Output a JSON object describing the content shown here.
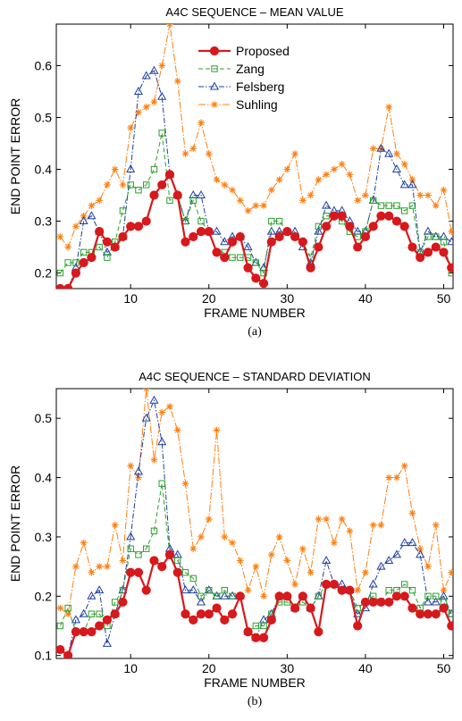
{
  "chart_data": [
    {
      "type": "line",
      "title": "A4C SEQUENCE – MEAN VALUE",
      "xlabel": "FRAME NUMBER",
      "ylabel": "END POINT ERROR",
      "caption": "(a)",
      "xlim": [
        0.5,
        51.2
      ],
      "ylim": [
        0.17,
        0.68
      ],
      "xticks": [
        10,
        20,
        30,
        40,
        50
      ],
      "yticks": [
        0.2,
        0.3,
        0.4,
        0.5,
        0.6
      ],
      "legend_position": "top-center",
      "x": [
        1,
        2,
        3,
        4,
        5,
        6,
        7,
        8,
        9,
        10,
        11,
        12,
        13,
        14,
        15,
        16,
        17,
        18,
        19,
        20,
        21,
        22,
        23,
        24,
        25,
        26,
        27,
        28,
        29,
        30,
        31,
        32,
        33,
        34,
        35,
        36,
        37,
        38,
        39,
        40,
        41,
        42,
        43,
        44,
        45,
        46,
        47,
        48,
        49,
        50,
        51
      ],
      "series": [
        {
          "name": "Proposed",
          "color": "#d7191c",
          "dash": "",
          "marker": "circle",
          "values": [
            0.17,
            0.17,
            0.2,
            0.22,
            0.23,
            0.28,
            0.26,
            0.25,
            0.27,
            0.29,
            0.29,
            0.3,
            0.35,
            0.37,
            0.39,
            0.35,
            0.26,
            0.27,
            0.28,
            0.28,
            0.24,
            0.23,
            0.26,
            0.27,
            0.21,
            0.19,
            0.18,
            0.26,
            0.27,
            0.28,
            0.27,
            0.26,
            0.21,
            0.25,
            0.29,
            0.31,
            0.31,
            0.29,
            0.25,
            0.27,
            0.29,
            0.31,
            0.31,
            0.3,
            0.29,
            0.25,
            0.23,
            0.24,
            0.25,
            0.24,
            0.21
          ]
        },
        {
          "name": "Zang",
          "color": "#2ca02c",
          "dash": "5,3",
          "marker": "square",
          "values": [
            0.2,
            0.22,
            0.22,
            0.24,
            0.24,
            0.25,
            0.23,
            0.26,
            0.32,
            0.37,
            0.36,
            0.37,
            0.4,
            0.47,
            0.34,
            0.35,
            0.3,
            0.34,
            0.3,
            0.28,
            0.24,
            0.24,
            0.23,
            0.23,
            0.23,
            0.22,
            0.2,
            0.3,
            0.3,
            0.28,
            0.27,
            0.26,
            0.23,
            0.29,
            0.31,
            0.31,
            0.3,
            0.28,
            0.27,
            0.28,
            0.34,
            0.33,
            0.33,
            0.33,
            0.32,
            0.33,
            0.24,
            0.27,
            0.27,
            0.26,
            0.2
          ]
        },
        {
          "name": "Felsberg",
          "color": "#1f3fa0",
          "dash": "6,2,1.5,2",
          "marker": "triangle",
          "values": [
            0.17,
            0.17,
            0.21,
            0.3,
            0.31,
            0.28,
            0.24,
            0.25,
            0.27,
            0.4,
            0.55,
            0.58,
            0.59,
            0.54,
            0.39,
            0.35,
            0.3,
            0.35,
            0.35,
            0.28,
            0.28,
            0.26,
            0.27,
            0.27,
            0.25,
            0.22,
            0.21,
            0.28,
            0.28,
            0.28,
            0.28,
            0.25,
            0.22,
            0.28,
            0.33,
            0.32,
            0.32,
            0.3,
            0.28,
            0.28,
            0.34,
            0.44,
            0.43,
            0.4,
            0.37,
            0.37,
            0.24,
            0.28,
            0.27,
            0.27,
            0.26
          ]
        },
        {
          "name": "Suhling",
          "color": "#ff7f0e",
          "dash": "8,2,1.5,2",
          "marker": "asterisk",
          "values": [
            0.27,
            0.25,
            0.29,
            0.31,
            0.33,
            0.34,
            0.37,
            0.4,
            0.37,
            0.48,
            0.51,
            0.52,
            0.53,
            0.6,
            0.68,
            0.57,
            0.43,
            0.44,
            0.49,
            0.43,
            0.38,
            0.37,
            0.36,
            0.34,
            0.32,
            0.33,
            0.33,
            0.36,
            0.38,
            0.4,
            0.43,
            0.34,
            0.35,
            0.38,
            0.39,
            0.4,
            0.41,
            0.39,
            0.34,
            0.35,
            0.44,
            0.44,
            0.52,
            0.43,
            0.41,
            0.38,
            0.35,
            0.35,
            0.33,
            0.36,
            0.28
          ]
        }
      ]
    },
    {
      "type": "line",
      "title": "A4C SEQUENCE – STANDARD DEVIATION",
      "xlabel": "FRAME NUMBER",
      "ylabel": "END POINT ERROR",
      "caption": "(b)",
      "xlim": [
        0.5,
        51.2
      ],
      "ylim": [
        0.095,
        0.55
      ],
      "xticks": [
        10,
        20,
        30,
        40,
        50
      ],
      "yticks": [
        0.1,
        0.2,
        0.3,
        0.4,
        0.5
      ],
      "x": [
        1,
        2,
        3,
        4,
        5,
        6,
        7,
        8,
        9,
        10,
        11,
        12,
        13,
        14,
        15,
        16,
        17,
        18,
        19,
        20,
        21,
        22,
        23,
        24,
        25,
        26,
        27,
        28,
        29,
        30,
        31,
        32,
        33,
        34,
        35,
        36,
        37,
        38,
        39,
        40,
        41,
        42,
        43,
        44,
        45,
        46,
        47,
        48,
        49,
        50,
        51
      ],
      "series": [
        {
          "name": "Proposed",
          "color": "#d7191c",
          "dash": "",
          "marker": "circle",
          "values": [
            0.11,
            0.1,
            0.14,
            0.14,
            0.14,
            0.15,
            0.16,
            0.17,
            0.19,
            0.24,
            0.24,
            0.21,
            0.26,
            0.25,
            0.27,
            0.24,
            0.17,
            0.16,
            0.17,
            0.17,
            0.18,
            0.16,
            0.17,
            0.2,
            0.14,
            0.13,
            0.13,
            0.16,
            0.2,
            0.2,
            0.18,
            0.2,
            0.18,
            0.14,
            0.22,
            0.22,
            0.21,
            0.21,
            0.15,
            0.19,
            0.19,
            0.19,
            0.19,
            0.2,
            0.2,
            0.18,
            0.17,
            0.17,
            0.17,
            0.18,
            0.15
          ]
        },
        {
          "name": "Zang",
          "color": "#2ca02c",
          "dash": "5,3",
          "marker": "square",
          "values": [
            0.15,
            0.18,
            0.14,
            0.14,
            0.17,
            0.17,
            0.15,
            0.19,
            0.21,
            0.28,
            0.27,
            0.28,
            0.31,
            0.39,
            0.27,
            0.26,
            0.24,
            0.23,
            0.2,
            0.21,
            0.2,
            0.21,
            0.2,
            0.2,
            0.14,
            0.15,
            0.15,
            0.17,
            0.19,
            0.19,
            0.18,
            0.19,
            0.18,
            0.2,
            0.22,
            0.22,
            0.21,
            0.21,
            0.18,
            0.19,
            0.2,
            0.19,
            0.21,
            0.21,
            0.22,
            0.21,
            0.18,
            0.2,
            0.2,
            0.19,
            0.17
          ]
        },
        {
          "name": "Felsberg",
          "color": "#1f3fa0",
          "dash": "6,2,1.5,2",
          "marker": "triangle",
          "values": [
            0.11,
            0.1,
            0.16,
            0.17,
            0.2,
            0.21,
            0.12,
            0.17,
            0.21,
            0.3,
            0.41,
            0.5,
            0.53,
            0.46,
            0.28,
            0.27,
            0.21,
            0.21,
            0.19,
            0.21,
            0.2,
            0.2,
            0.2,
            0.2,
            0.14,
            0.13,
            0.16,
            0.17,
            0.2,
            0.2,
            0.18,
            0.2,
            0.18,
            0.2,
            0.26,
            0.22,
            0.22,
            0.21,
            0.17,
            0.18,
            0.22,
            0.25,
            0.26,
            0.27,
            0.29,
            0.29,
            0.27,
            0.19,
            0.19,
            0.2,
            0.17
          ]
        },
        {
          "name": "Suhling",
          "color": "#ff7f0e",
          "dash": "8,2,1.5,2",
          "marker": "asterisk",
          "values": [
            0.18,
            0.17,
            0.25,
            0.29,
            0.24,
            0.25,
            0.25,
            0.32,
            0.26,
            0.42,
            0.4,
            0.55,
            0.43,
            0.51,
            0.52,
            0.48,
            0.39,
            0.28,
            0.3,
            0.33,
            0.48,
            0.3,
            0.29,
            0.26,
            0.21,
            0.25,
            0.2,
            0.27,
            0.3,
            0.26,
            0.22,
            0.28,
            0.24,
            0.33,
            0.33,
            0.29,
            0.33,
            0.31,
            0.21,
            0.24,
            0.32,
            0.32,
            0.4,
            0.4,
            0.42,
            0.34,
            0.28,
            0.25,
            0.32,
            0.21,
            0.24
          ]
        }
      ]
    }
  ]
}
